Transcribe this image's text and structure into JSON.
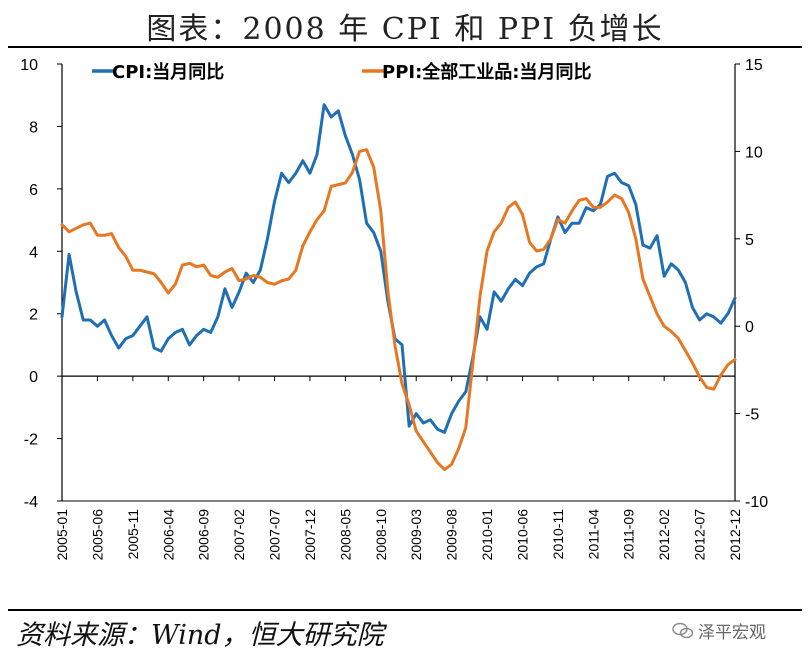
{
  "title": "图表：2008 年 CPI 和 PPI 负增长",
  "source": "资料来源：Wind，恒大研究院",
  "watermark": "泽平宏观",
  "chart_data": {
    "type": "line",
    "x": [
      "2005-01",
      "2005-02",
      "2005-03",
      "2005-04",
      "2005-05",
      "2005-06",
      "2005-07",
      "2005-08",
      "2005-09",
      "2005-10",
      "2005-11",
      "2005-12",
      "2006-01",
      "2006-02",
      "2006-03",
      "2006-04",
      "2006-05",
      "2006-06",
      "2006-07",
      "2006-08",
      "2006-09",
      "2006-10",
      "2006-11",
      "2006-12",
      "2007-01",
      "2007-02",
      "2007-03",
      "2007-04",
      "2007-05",
      "2007-06",
      "2007-07",
      "2007-08",
      "2007-09",
      "2007-10",
      "2007-11",
      "2007-12",
      "2008-01",
      "2008-02",
      "2008-03",
      "2008-04",
      "2008-05",
      "2008-06",
      "2008-07",
      "2008-08",
      "2008-09",
      "2008-10",
      "2008-11",
      "2008-12",
      "2009-01",
      "2009-02",
      "2009-03",
      "2009-04",
      "2009-05",
      "2009-06",
      "2009-07",
      "2009-08",
      "2009-09",
      "2009-10",
      "2009-11",
      "2009-12",
      "2010-01",
      "2010-02",
      "2010-03",
      "2010-04",
      "2010-05",
      "2010-06",
      "2010-07",
      "2010-08",
      "2010-09",
      "2010-10",
      "2010-11",
      "2010-12",
      "2011-01",
      "2011-02",
      "2011-03",
      "2011-04",
      "2011-05",
      "2011-06",
      "2011-07",
      "2011-08",
      "2011-09",
      "2011-10",
      "2011-11",
      "2011-12",
      "2012-01",
      "2012-02",
      "2012-03",
      "2012-04",
      "2012-05",
      "2012-06",
      "2012-07",
      "2012-08",
      "2012-09",
      "2012-10",
      "2012-11",
      "2012-12"
    ],
    "x_tick_labels": [
      "2005-01",
      "2005-06",
      "2005-11",
      "2006-04",
      "2006-09",
      "2007-02",
      "2007-07",
      "2007-12",
      "2008-05",
      "2008-10",
      "2009-03",
      "2009-08",
      "2010-01",
      "2010-06",
      "2010-11",
      "2011-04",
      "2011-09",
      "2012-02",
      "2012-07",
      "2012-12"
    ],
    "series": [
      {
        "name": "CPI:当月同比",
        "axis": "left",
        "color": "#1F6FB5",
        "values": [
          1.9,
          3.9,
          2.7,
          1.8,
          1.8,
          1.6,
          1.8,
          1.3,
          0.9,
          1.2,
          1.3,
          1.6,
          1.9,
          0.9,
          0.8,
          1.2,
          1.4,
          1.5,
          1.0,
          1.3,
          1.5,
          1.4,
          1.9,
          2.8,
          2.2,
          2.7,
          3.3,
          3.0,
          3.4,
          4.4,
          5.6,
          6.5,
          6.2,
          6.5,
          6.9,
          6.5,
          7.1,
          8.7,
          8.3,
          8.5,
          7.7,
          7.1,
          6.3,
          4.9,
          4.6,
          4.0,
          2.4,
          1.2,
          1.0,
          -1.6,
          -1.2,
          -1.5,
          -1.4,
          -1.7,
          -1.8,
          -1.2,
          -0.8,
          -0.5,
          0.6,
          1.9,
          1.5,
          2.7,
          2.4,
          2.8,
          3.1,
          2.9,
          3.3,
          3.5,
          3.6,
          4.4,
          5.1,
          4.6,
          4.9,
          4.9,
          5.4,
          5.3,
          5.5,
          6.4,
          6.5,
          6.2,
          6.1,
          5.5,
          4.2,
          4.1,
          4.5,
          3.2,
          3.6,
          3.4,
          3.0,
          2.2,
          1.8,
          2.0,
          1.9,
          1.7,
          2.0,
          2.5
        ]
      },
      {
        "name": "PPI:全部工业品:当月同比",
        "axis": "right",
        "color": "#E87722",
        "values": [
          5.8,
          5.4,
          5.6,
          5.8,
          5.9,
          5.2,
          5.2,
          5.3,
          4.5,
          4.0,
          3.2,
          3.2,
          3.1,
          3.0,
          2.5,
          1.9,
          2.4,
          3.5,
          3.6,
          3.4,
          3.5,
          2.9,
          2.8,
          3.1,
          3.3,
          2.6,
          2.7,
          2.9,
          2.8,
          2.5,
          2.4,
          2.6,
          2.7,
          3.2,
          4.6,
          5.4,
          6.1,
          6.6,
          8.0,
          8.1,
          8.2,
          8.8,
          10.0,
          10.1,
          9.1,
          6.6,
          2.0,
          -1.1,
          -3.3,
          -4.5,
          -6.0,
          -6.6,
          -7.2,
          -7.8,
          -8.2,
          -7.9,
          -7.0,
          -5.8,
          -2.1,
          1.7,
          4.3,
          5.4,
          5.9,
          6.8,
          7.1,
          6.4,
          4.8,
          4.3,
          4.4,
          5.0,
          6.1,
          5.9,
          6.6,
          7.2,
          7.3,
          6.8,
          6.8,
          7.1,
          7.5,
          7.3,
          6.5,
          5.0,
          2.7,
          1.7,
          0.7,
          0.0,
          -0.3,
          -0.7,
          -1.4,
          -2.1,
          -2.9,
          -3.5,
          -3.6,
          -2.8,
          -2.2,
          -1.9
        ]
      }
    ],
    "y_left": {
      "range": [
        -4,
        10
      ],
      "ticks": [
        -4,
        -2,
        0,
        2,
        4,
        6,
        8,
        10
      ]
    },
    "y_right": {
      "range": [
        -10,
        15
      ],
      "ticks": [
        -10,
        -5,
        0,
        5,
        10,
        15
      ]
    },
    "legend": "top"
  }
}
